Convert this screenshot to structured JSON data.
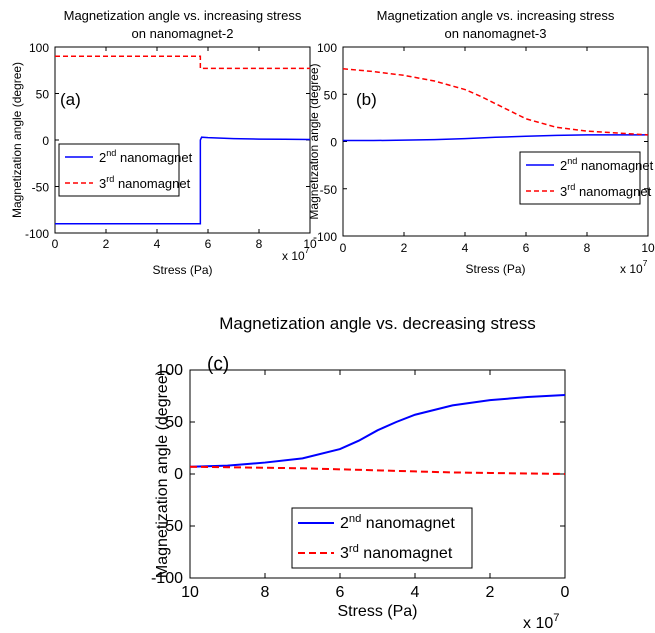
{
  "chart_data": [
    {
      "id": "a",
      "type": "line",
      "title_lines": [
        "Magnetization angle vs. increasing stress",
        "on nanomagnet-2"
      ],
      "panel_label": "(a)",
      "xlabel": "Stress (Pa)",
      "ylabel": "Magnetization angle (degree)",
      "x_multiplier": "x 10",
      "x_multiplier_exp": "7",
      "xlim": [
        0,
        10
      ],
      "ylim": [
        -100,
        100
      ],
      "xticks": [
        0,
        2,
        4,
        6,
        8,
        10
      ],
      "yticks": [
        -100,
        -50,
        0,
        50,
        100
      ],
      "xtick_labels": [
        "0",
        "2",
        "4",
        "6",
        "8",
        "10"
      ],
      "ytick_labels": [
        "-100",
        "-50",
        "0",
        "50",
        "100"
      ],
      "legend_placement": "left",
      "series": [
        {
          "name": "2nd nanomagnet",
          "name_base": "2",
          "name_sup": "nd",
          "name_rest": " nanomagnet",
          "color": "#0000ff",
          "dash": "solid",
          "x": [
            0,
            5.7,
            5.7,
            5.75,
            6,
            7,
            8,
            9,
            10
          ],
          "y": [
            -90,
            -90,
            0,
            3,
            2.5,
            1.5,
            1,
            0.8,
            0.5
          ]
        },
        {
          "name": "3rd nanomagnet",
          "name_base": "3",
          "name_sup": "rd",
          "name_rest": " nanomagnet",
          "color": "#ff0000",
          "dash": "dashed",
          "x": [
            0,
            5.7,
            5.7,
            10
          ],
          "y": [
            90,
            90,
            77,
            77
          ]
        }
      ]
    },
    {
      "id": "b",
      "type": "line",
      "title_lines": [
        "Magnetization angle vs. increasing stress",
        "on nanomagnet-3"
      ],
      "panel_label": "(b)",
      "xlabel": "Stress (Pa)",
      "ylabel": "Magnetization angle (degree)",
      "x_multiplier": "x 10",
      "x_multiplier_exp": "7",
      "xlim": [
        0,
        10
      ],
      "ylim": [
        -100,
        100
      ],
      "xticks": [
        0,
        2,
        4,
        6,
        8,
        10
      ],
      "yticks": [
        -100,
        -50,
        0,
        50,
        100
      ],
      "xtick_labels": [
        "0",
        "2",
        "4",
        "6",
        "8",
        "10"
      ],
      "ytick_labels": [
        "-100",
        "-50",
        "0",
        "50",
        "100"
      ],
      "legend_placement": "right",
      "series": [
        {
          "name": "2nd nanomagnet",
          "name_base": "2",
          "name_sup": "nd",
          "name_rest": " nanomagnet",
          "color": "#0000ff",
          "dash": "solid",
          "x": [
            0,
            1,
            2,
            3,
            4,
            5,
            6,
            7,
            8,
            9,
            10
          ],
          "y": [
            1,
            1,
            1.5,
            2,
            3,
            4.5,
            5.5,
            6.5,
            7,
            7,
            7
          ]
        },
        {
          "name": "3rd nanomagnet",
          "name_base": "3",
          "name_sup": "rd",
          "name_rest": " nanomagnet",
          "color": "#ff0000",
          "dash": "dashed",
          "x": [
            0,
            1,
            2,
            3,
            4,
            4.5,
            5,
            5.5,
            6,
            7,
            8,
            9,
            10
          ],
          "y": [
            77,
            74,
            70,
            64,
            55,
            48,
            40,
            32,
            24,
            15,
            11,
            9,
            7
          ]
        }
      ]
    },
    {
      "id": "c",
      "type": "line",
      "title_lines": [
        "Magnetization angle vs. decreasing stress"
      ],
      "panel_label": "(c)",
      "xlabel": "Stress (Pa)",
      "ylabel": "Magnetization angle (degree)",
      "x_multiplier": "x 10",
      "x_multiplier_exp": "7",
      "xlim": [
        10,
        0
      ],
      "x_reversed": true,
      "ylim": [
        -100,
        100
      ],
      "xticks": [
        10,
        8,
        6,
        4,
        2,
        0
      ],
      "yticks": [
        -100,
        -50,
        0,
        50,
        100
      ],
      "xtick_labels": [
        "10",
        "8",
        "6",
        "4",
        "2",
        "0"
      ],
      "ytick_labels": [
        "-100",
        "-50",
        "0",
        "50",
        "100"
      ],
      "legend_placement": "bottom-center",
      "series": [
        {
          "name": "2nd nanomagnet",
          "name_base": "2",
          "name_sup": "nd",
          "name_rest": " nanomagnet",
          "color": "#0000ff",
          "dash": "solid",
          "x": [
            10,
            9,
            8,
            7,
            6,
            5.5,
            5,
            4.5,
            4,
            3,
            2,
            1,
            0
          ],
          "y": [
            7,
            8,
            11,
            15,
            24,
            32,
            42,
            50,
            57,
            66,
            71,
            74,
            76
          ]
        },
        {
          "name": "3rd nanomagnet",
          "name_base": "3",
          "name_sup": "rd",
          "name_rest": " nanomagnet",
          "color": "#ff0000",
          "dash": "dashed",
          "x": [
            10,
            9,
            8,
            7,
            6,
            5,
            4,
            3,
            2,
            1,
            0
          ],
          "y": [
            7,
            6.5,
            6,
            5.5,
            4.5,
            3.5,
            2.5,
            1.5,
            1,
            0.5,
            0
          ]
        }
      ]
    }
  ]
}
